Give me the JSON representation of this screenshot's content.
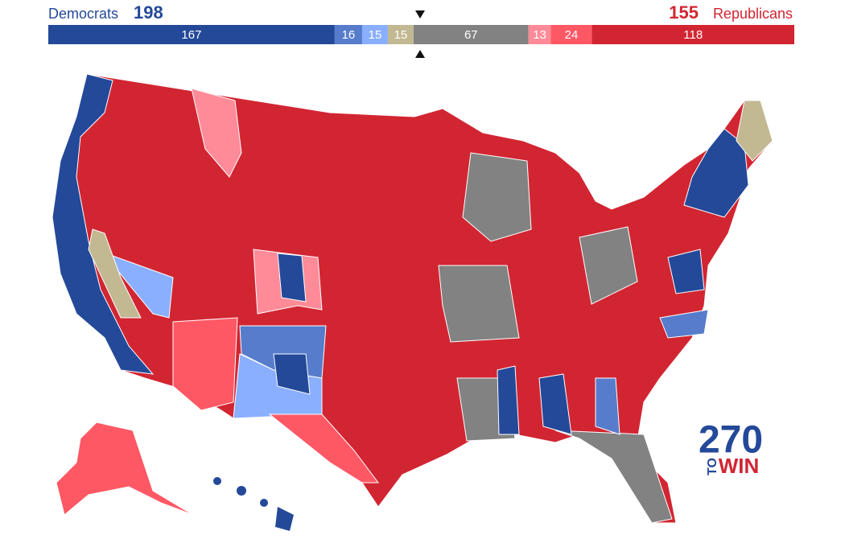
{
  "header": {
    "dem_label": "Democrats",
    "dem_total": 198,
    "rep_total": 155,
    "rep_label": "Republicans"
  },
  "bar": {
    "segments": [
      {
        "value": 167,
        "color": "#244999"
      },
      {
        "value": 16,
        "color": "#577ccc"
      },
      {
        "value": 15,
        "color": "#8aafff"
      },
      {
        "value": 15,
        "color": "#c2b891"
      },
      {
        "value": 67,
        "color": "#828282"
      },
      {
        "value": 13,
        "color": "#ff8b98"
      },
      {
        "value": 24,
        "color": "#ff5865"
      },
      {
        "value": 118,
        "color": "#d22532"
      }
    ]
  },
  "logo": {
    "number": "270",
    "side": "TO",
    "word": "WIN"
  }
}
